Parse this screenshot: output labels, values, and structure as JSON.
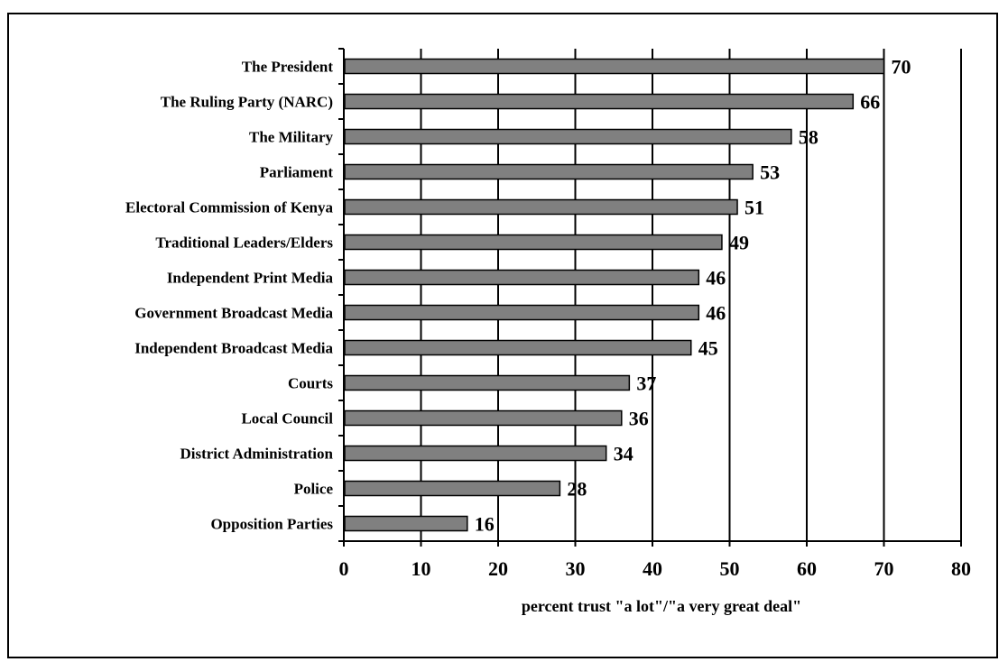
{
  "chart_data": {
    "type": "bar",
    "orientation": "horizontal",
    "categories": [
      "The President",
      "The Ruling Party (NARC)",
      "The Military",
      "Parliament",
      "Electoral Commission of Kenya",
      "Traditional Leaders/Elders",
      "Independent Print Media",
      "Government Broadcast Media",
      "Independent Broadcast Media",
      "Courts",
      "Local Council",
      "District Administration",
      "Police",
      "Opposition Parties"
    ],
    "values": [
      70,
      66,
      58,
      53,
      51,
      49,
      46,
      46,
      45,
      37,
      36,
      34,
      28,
      16
    ],
    "xlabel": "percent trust \"a lot\"/\"a very great deal\"",
    "ylabel": "",
    "xlim": [
      0,
      80
    ],
    "xticks": [
      0,
      10,
      20,
      30,
      40,
      50,
      60,
      70,
      80
    ],
    "grid": "vertical",
    "legend": "none",
    "colors": {
      "bar": "#808080",
      "bar_edge": "#000000",
      "grid": "#000000"
    }
  }
}
